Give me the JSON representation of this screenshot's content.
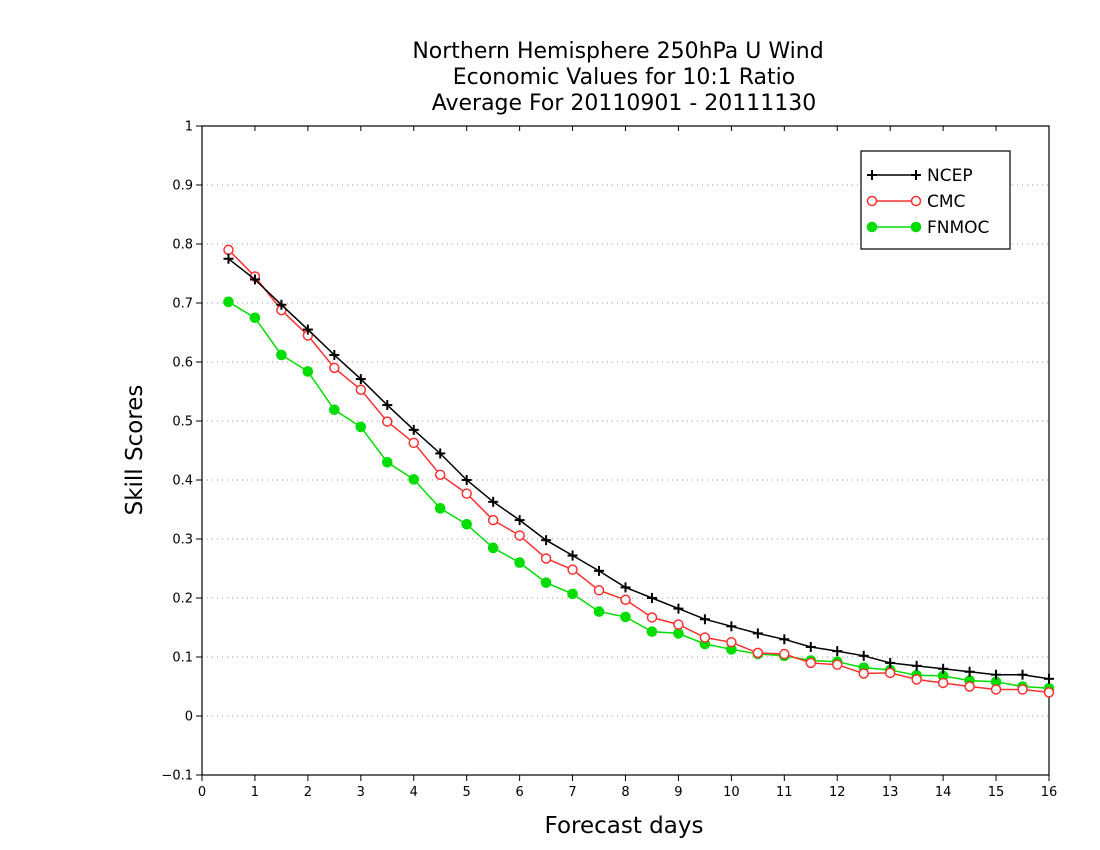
{
  "chart_data": {
    "type": "line",
    "title_lines": [
      "Northern Hemisphere 250hPa U Wind",
      "Economic Values for 10:1 Ratio",
      "Average For 20110901 - 20111130"
    ],
    "xlabel": "Forecast days",
    "ylabel": "Skill Scores",
    "xlim": [
      0,
      16
    ],
    "ylim": [
      -0.1,
      1
    ],
    "xticks": [
      0,
      1,
      2,
      3,
      4,
      5,
      6,
      7,
      8,
      9,
      10,
      11,
      12,
      13,
      14,
      15,
      16
    ],
    "yticks": [
      -0.1,
      0,
      0.1,
      0.2,
      0.3,
      0.4,
      0.5,
      0.6,
      0.7,
      0.8,
      0.9,
      1
    ],
    "ytick_labels": [
      "−0.1",
      "0",
      "0.1",
      "0.2",
      "0.3",
      "0.4",
      "0.5",
      "0.6",
      "0.7",
      "0.8",
      "0.9",
      "1"
    ],
    "grid": "horizontal-dotted",
    "legend_position": "top-right",
    "x": [
      0.5,
      1,
      1.5,
      2,
      2.5,
      3,
      3.5,
      4,
      4.5,
      5,
      5.5,
      6,
      6.5,
      7,
      7.5,
      8,
      8.5,
      9,
      9.5,
      10,
      10.5,
      11,
      11.5,
      12,
      12.5,
      13,
      13.5,
      14,
      14.5,
      15,
      15.5,
      16
    ],
    "series": [
      {
        "name": "NCEP",
        "color": "#000000",
        "marker": "plus",
        "values": [
          0.775,
          0.74,
          0.697,
          0.655,
          0.612,
          0.571,
          0.527,
          0.485,
          0.445,
          0.4,
          0.363,
          0.332,
          0.298,
          0.272,
          0.246,
          0.218,
          0.2,
          0.182,
          0.164,
          0.152,
          0.14,
          0.13,
          0.117,
          0.11,
          0.102,
          0.09,
          0.085,
          0.08,
          0.075,
          0.07,
          0.07,
          0.063
        ]
      },
      {
        "name": "CMC",
        "color": "#ff3030",
        "marker": "open-circle",
        "values": [
          0.79,
          0.745,
          0.688,
          0.645,
          0.59,
          0.553,
          0.499,
          0.463,
          0.409,
          0.377,
          0.332,
          0.306,
          0.267,
          0.248,
          0.213,
          0.197,
          0.167,
          0.155,
          0.133,
          0.125,
          0.107,
          0.105,
          0.09,
          0.087,
          0.072,
          0.073,
          0.062,
          0.056,
          0.05,
          0.045,
          0.045,
          0.04
        ]
      },
      {
        "name": "FNMOC",
        "color": "#00dd00",
        "marker": "filled-circle",
        "values": [
          0.702,
          0.675,
          0.612,
          0.584,
          0.519,
          0.49,
          0.43,
          0.401,
          0.352,
          0.325,
          0.285,
          0.26,
          0.226,
          0.207,
          0.177,
          0.168,
          0.143,
          0.14,
          0.122,
          0.113,
          0.105,
          0.102,
          0.094,
          0.092,
          0.082,
          0.078,
          0.069,
          0.068,
          0.06,
          0.058,
          0.05,
          0.047
        ]
      }
    ]
  }
}
